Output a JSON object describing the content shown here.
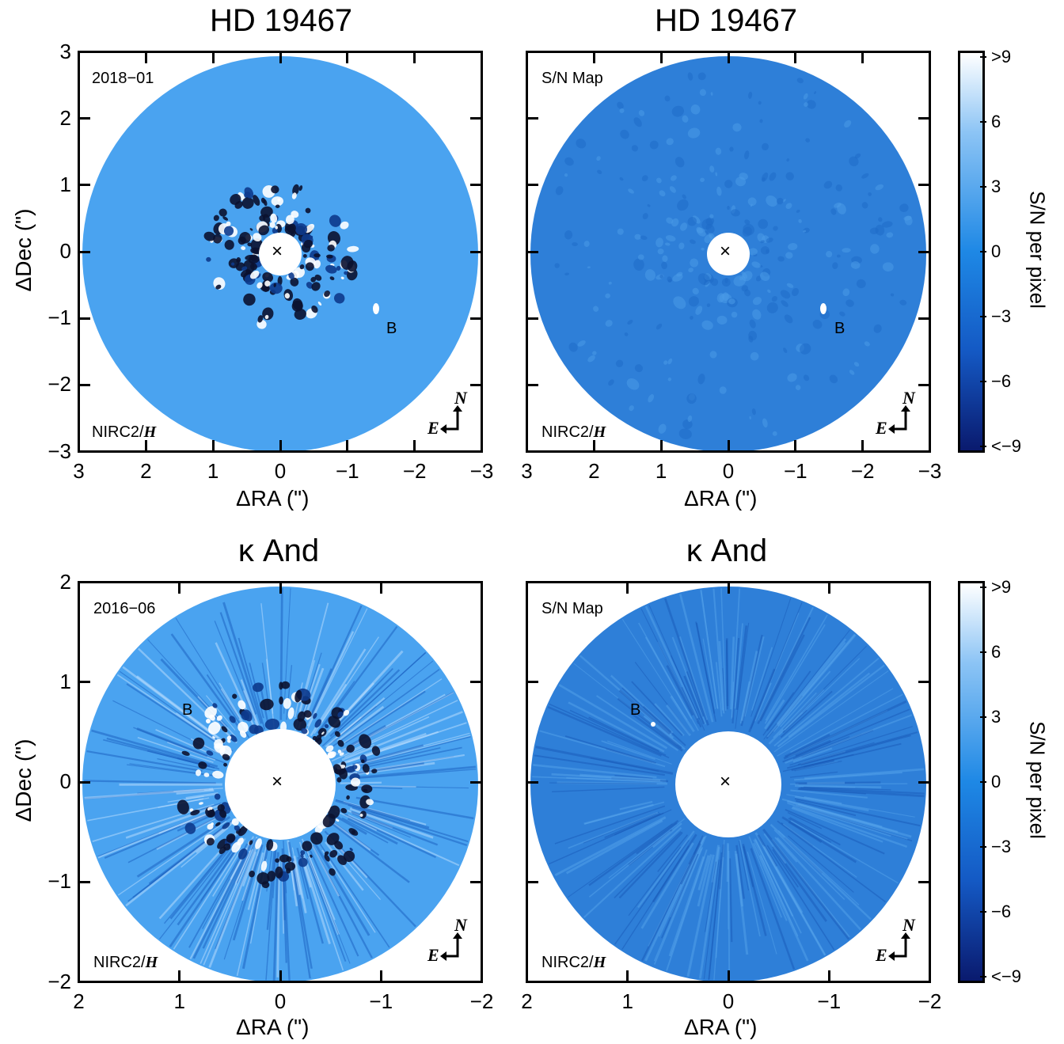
{
  "colors": {
    "map_light": "#4aa3f0",
    "map_mid": "#2e7fd8",
    "map_dark": "#08206b",
    "colorbar_top": "#ffffff",
    "colorbar_mid": "#1e88e5",
    "colorbar_bottom": "#0a1a6e"
  },
  "panels": [
    {
      "title": "HD 19467",
      "tag": "2018−01",
      "instrument_prefix": "NIRC2/",
      "instrument_filter": "H",
      "companion_label": "B",
      "xlabel": "ΔRA (\")",
      "ylabel": "ΔDec (\")",
      "xticks": [
        "3",
        "2",
        "1",
        "0",
        "−1",
        "−2",
        "−3"
      ],
      "yticks": [
        "3",
        "2",
        "1",
        "0",
        "−1",
        "−2",
        "−3"
      ],
      "center_marker": "×",
      "compass": {
        "n": "N",
        "e": "E"
      }
    },
    {
      "title": "HD 19467",
      "tag": "S/N Map",
      "instrument_prefix": "NIRC2/",
      "instrument_filter": "H",
      "companion_label": "B",
      "xlabel": "ΔRA (\")",
      "xticks": [
        "3",
        "2",
        "1",
        "0",
        "−1",
        "−2",
        "−3"
      ],
      "center_marker": "×",
      "compass": {
        "n": "N",
        "e": "E"
      }
    },
    {
      "title": "κ And",
      "tag": "2016−06",
      "instrument_prefix": "NIRC2/",
      "instrument_filter": "H",
      "companion_label": "B",
      "xlabel": "ΔRA (\")",
      "ylabel": "ΔDec (\")",
      "xticks": [
        "2",
        "1",
        "0",
        "−1",
        "−2"
      ],
      "yticks": [
        "2",
        "1",
        "0",
        "−1",
        "−2"
      ],
      "center_marker": "×",
      "compass": {
        "n": "N",
        "e": "E"
      }
    },
    {
      "title": "κ And",
      "tag": "S/N Map",
      "instrument_prefix": "NIRC2/",
      "instrument_filter": "H",
      "companion_label": "B",
      "xlabel": "ΔRA (\")",
      "xticks": [
        "2",
        "1",
        "0",
        "−1",
        "−2"
      ],
      "center_marker": "×",
      "compass": {
        "n": "N",
        "e": "E"
      }
    }
  ],
  "colorbars": [
    {
      "label": "S/N per pixel",
      "ticks": [
        ">9",
        "6",
        "3",
        "0",
        "−3",
        "−6",
        "<−9"
      ]
    },
    {
      "label": "S/N per pixel",
      "ticks": [
        ">9",
        "6",
        "3",
        "0",
        "−3",
        "−6",
        "<−9"
      ]
    }
  ]
}
